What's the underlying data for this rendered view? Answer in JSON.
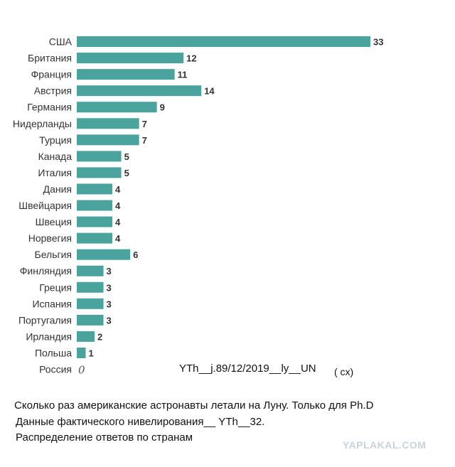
{
  "colors": {
    "bar": "#4aa39c",
    "text": "#333333"
  },
  "chart_data": {
    "type": "bar",
    "orientation": "horizontal",
    "categories": [
      "США",
      "Британия",
      "Франция",
      "Австрия",
      "Германия",
      "Нидерланды",
      "Турция",
      "Канада",
      "Италия",
      "Дания",
      "Швейцария",
      "Швеция",
      "Норвегия",
      "Бельгия",
      "Финляндия",
      "Греция",
      "Испания",
      "Португалия",
      "Ирландия",
      "Польша",
      "Россия"
    ],
    "values": [
      33,
      12,
      11,
      14,
      9,
      7,
      7,
      5,
      5,
      4,
      4,
      4,
      4,
      6,
      3,
      3,
      3,
      3,
      2,
      1,
      0
    ],
    "value_labels": [
      "33",
      "12",
      "11",
      "14",
      "9",
      "7",
      "7",
      "5",
      "5",
      "4",
      "4",
      "4",
      "4",
      "6",
      "3",
      "3",
      "3",
      "3",
      "2",
      "1",
      "0"
    ],
    "xlim": [
      0,
      33
    ],
    "grid": false
  },
  "annotations": {
    "mid_text": "YTh__j.89/12/2019__ly__UN",
    "paren_text": "( cx)"
  },
  "captions": [
    "Сколько раз американские астронавты летали на Луну. Только для Ph.D",
    "Данные фактического нивелирования__ YTh__32.",
    "Распределение ответов по странам"
  ],
  "watermark": "YAPLAKAL.COM"
}
